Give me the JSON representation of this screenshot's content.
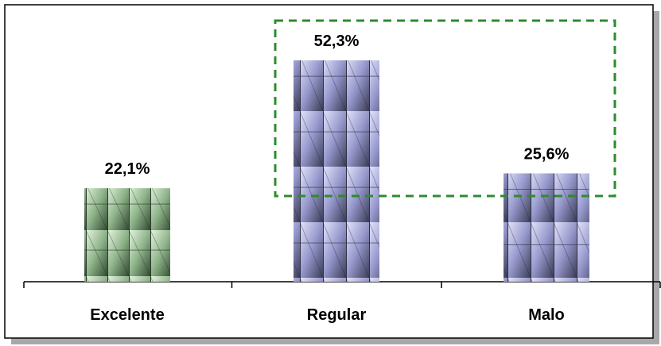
{
  "chart_data": {
    "type": "bar",
    "title": "",
    "xlabel": "",
    "ylabel": "",
    "categories": [
      "Excelente",
      "Regular",
      "Malo"
    ],
    "values": [
      22.1,
      52.3,
      25.6
    ],
    "data_labels": [
      "22,1%",
      "52,3%",
      "25,6%"
    ],
    "unit": "%",
    "ylim": [
      0,
      60
    ],
    "grid": false,
    "legend": "none",
    "highlight": {
      "categories": [
        "Regular",
        "Malo"
      ],
      "style": "dashed-box",
      "color": "#2e8b2e"
    },
    "colors": {
      "Excelente": "#b7e0b0",
      "Regular": "#a9abe8",
      "Malo": "#a9abe8",
      "frame_shadow": "#a8a8a8",
      "axis": "#000000"
    }
  }
}
